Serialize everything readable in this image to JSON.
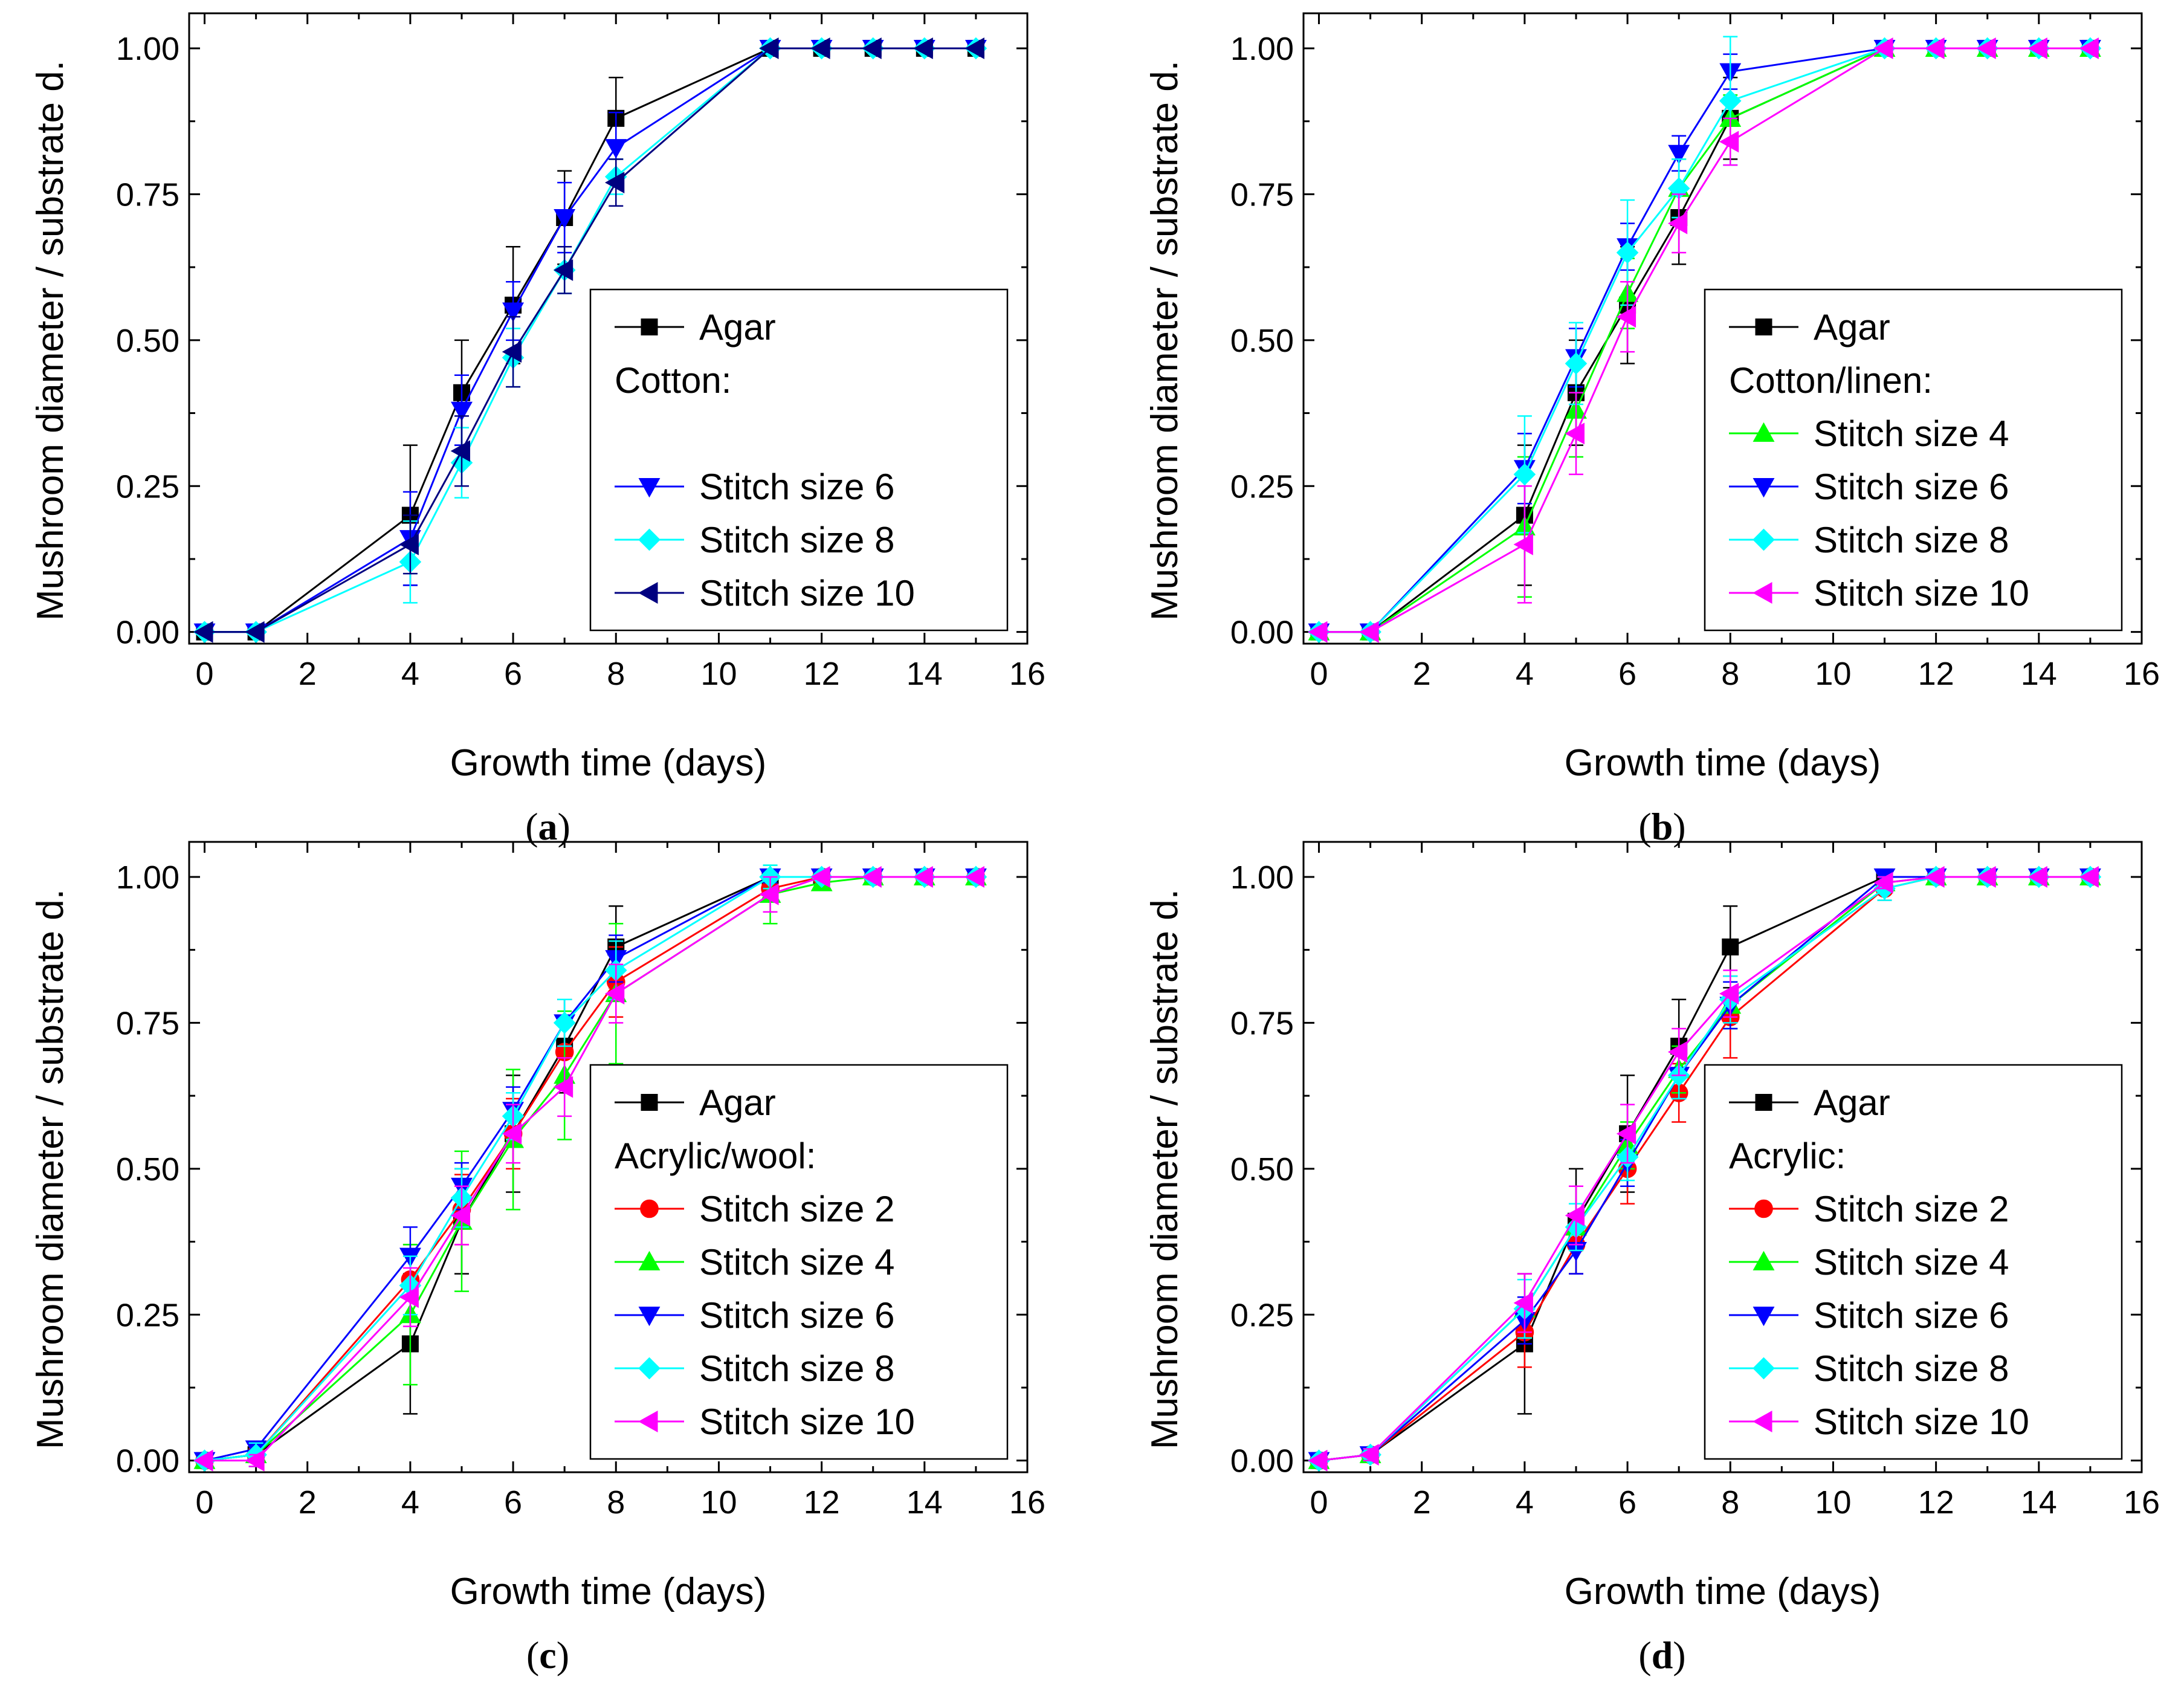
{
  "chart_data": [
    {
      "type": "line",
      "panel_label": "a",
      "xlabel": "Growth time (days)",
      "ylabel": "Mushroom diameter / substrate d.",
      "xlim": [
        -0.3,
        16
      ],
      "ylim": [
        -0.02,
        1.06
      ],
      "xticks": [
        0,
        2,
        4,
        6,
        8,
        10,
        12,
        14,
        16
      ],
      "yticks": [
        0.0,
        0.25,
        0.5,
        0.75,
        1.0
      ],
      "ytick_labels": [
        "0.00",
        "0.25",
        "0.50",
        "0.75",
        "1.00"
      ],
      "grid": false,
      "legend_position": "bottom-right",
      "legend_group_label": "Cotton:",
      "legend_gap": 1,
      "series": [
        {
          "name": "Agar",
          "color": "#000000",
          "marker": "square",
          "x": [
            0,
            1,
            4,
            5,
            6,
            7,
            8,
            11,
            12,
            13,
            14,
            15
          ],
          "y": [
            0.0,
            0.0,
            0.2,
            0.41,
            0.56,
            0.71,
            0.88,
            1.0,
            1.0,
            1.0,
            1.0,
            1.0
          ],
          "err": [
            0,
            0,
            0.12,
            0.09,
            0.1,
            0.08,
            0.07,
            0,
            0,
            0,
            0,
            0
          ]
        },
        {
          "name": "Stitch size 6",
          "color": "#0000ff",
          "marker": "triangle-down",
          "x": [
            0,
            1,
            4,
            5,
            6,
            7,
            8,
            11,
            12,
            13,
            14,
            15
          ],
          "y": [
            0.0,
            0.0,
            0.16,
            0.38,
            0.55,
            0.71,
            0.83,
            1.0,
            1.0,
            1.0,
            1.0,
            1.0
          ],
          "err": [
            0,
            0,
            0.08,
            0.06,
            0.05,
            0.06,
            0.06,
            0,
            0,
            0,
            0,
            0
          ]
        },
        {
          "name": "Stitch size 8",
          "color": "#00ffff",
          "marker": "diamond",
          "x": [
            0,
            1,
            4,
            5,
            6,
            7,
            8,
            11,
            12,
            13,
            14,
            15
          ],
          "y": [
            0.0,
            0.0,
            0.12,
            0.29,
            0.47,
            0.62,
            0.78,
            1.0,
            1.0,
            1.0,
            1.0,
            1.0
          ],
          "err": [
            0,
            0,
            0.07,
            0.06,
            0.05,
            0.04,
            0.03,
            0,
            0,
            0,
            0,
            0
          ]
        },
        {
          "name": "Stitch size 10",
          "color": "#000080",
          "marker": "triangle-left",
          "x": [
            0,
            1,
            4,
            5,
            6,
            7,
            8,
            11,
            12,
            13,
            14,
            15
          ],
          "y": [
            0.0,
            0.0,
            0.15,
            0.31,
            0.48,
            0.62,
            0.77,
            1.0,
            1.0,
            1.0,
            1.0,
            1.0
          ],
          "err": [
            0,
            0,
            0.05,
            0.06,
            0.06,
            0.04,
            0.04,
            0,
            0,
            0,
            0,
            0
          ]
        }
      ]
    },
    {
      "type": "line",
      "panel_label": "b",
      "xlabel": "Growth time (days)",
      "ylabel": "Mushroom diameter / substrate d.",
      "xlim": [
        -0.3,
        16
      ],
      "ylim": [
        -0.02,
        1.06
      ],
      "xticks": [
        0,
        2,
        4,
        6,
        8,
        10,
        12,
        14,
        16
      ],
      "yticks": [
        0.0,
        0.25,
        0.5,
        0.75,
        1.0
      ],
      "ytick_labels": [
        "0.00",
        "0.25",
        "0.50",
        "0.75",
        "1.00"
      ],
      "grid": false,
      "legend_position": "bottom-right",
      "legend_group_label": "Cotton/linen:",
      "legend_gap": 0,
      "series": [
        {
          "name": "Agar",
          "color": "#000000",
          "marker": "square",
          "x": [
            0,
            1,
            4,
            5,
            6,
            7,
            8,
            11,
            12,
            13,
            14,
            15
          ],
          "y": [
            0.0,
            0.0,
            0.2,
            0.41,
            0.56,
            0.71,
            0.88,
            1.0,
            1.0,
            1.0,
            1.0,
            1.0
          ],
          "err": [
            0,
            0,
            0.12,
            0.09,
            0.1,
            0.08,
            0.07,
            0,
            0,
            0,
            0,
            0
          ]
        },
        {
          "name": "Stitch size 4",
          "color": "#00ff00",
          "marker": "triangle-up",
          "x": [
            0,
            1,
            4,
            5,
            6,
            7,
            8,
            11,
            12,
            13,
            14,
            15
          ],
          "y": [
            0.0,
            0.0,
            0.18,
            0.38,
            0.58,
            0.76,
            0.88,
            1.0,
            1.0,
            1.0,
            1.0,
            1.0
          ],
          "err": [
            0,
            0,
            0.12,
            0.08,
            0.06,
            0.05,
            0.04,
            0,
            0,
            0,
            0,
            0
          ]
        },
        {
          "name": "Stitch size 6",
          "color": "#0000ff",
          "marker": "triangle-down",
          "x": [
            0,
            1,
            4,
            5,
            6,
            7,
            8,
            11,
            12,
            13,
            14,
            15
          ],
          "y": [
            0.0,
            0.0,
            0.28,
            0.47,
            0.66,
            0.82,
            0.96,
            1.0,
            1.0,
            1.0,
            1.0,
            1.0
          ],
          "err": [
            0,
            0,
            0.06,
            0.05,
            0.04,
            0.03,
            0.03,
            0,
            0,
            0,
            0,
            0
          ]
        },
        {
          "name": "Stitch size 8",
          "color": "#00ffff",
          "marker": "diamond",
          "x": [
            0,
            1,
            4,
            5,
            6,
            7,
            8,
            11,
            12,
            13,
            14,
            15
          ],
          "y": [
            0.0,
            0.0,
            0.27,
            0.46,
            0.65,
            0.76,
            0.91,
            1.0,
            1.0,
            1.0,
            1.0,
            1.0
          ],
          "err": [
            0,
            0,
            0.1,
            0.07,
            0.09,
            0.05,
            0.11,
            0,
            0,
            0,
            0,
            0
          ]
        },
        {
          "name": "Stitch size 10",
          "color": "#ff00ff",
          "marker": "triangle-left",
          "x": [
            0,
            1,
            4,
            5,
            6,
            7,
            8,
            11,
            12,
            13,
            14,
            15
          ],
          "y": [
            0.0,
            0.0,
            0.15,
            0.34,
            0.54,
            0.7,
            0.84,
            1.0,
            1.0,
            1.0,
            1.0,
            1.0
          ],
          "err": [
            0,
            0,
            0.1,
            0.07,
            0.06,
            0.05,
            0.04,
            0,
            0,
            0,
            0,
            0
          ]
        }
      ]
    },
    {
      "type": "line",
      "panel_label": "c",
      "xlabel": "Growth time (days)",
      "ylabel": "Mushroom diameter / substrate d.",
      "xlim": [
        -0.3,
        16
      ],
      "ylim": [
        -0.02,
        1.06
      ],
      "xticks": [
        0,
        2,
        4,
        6,
        8,
        10,
        12,
        14,
        16
      ],
      "yticks": [
        0.0,
        0.25,
        0.5,
        0.75,
        1.0
      ],
      "ytick_labels": [
        "0.00",
        "0.25",
        "0.50",
        "0.75",
        "1.00"
      ],
      "grid": false,
      "legend_position": "bottom-right",
      "legend_group_label": "Acrylic/wool:",
      "legend_gap": 0,
      "series": [
        {
          "name": "Agar",
          "color": "#000000",
          "marker": "square",
          "x": [
            0,
            1,
            4,
            5,
            6,
            7,
            8,
            11,
            12,
            13,
            14,
            15
          ],
          "y": [
            0.0,
            0.01,
            0.2,
            0.41,
            0.56,
            0.71,
            0.88,
            1.0,
            1.0,
            1.0,
            1.0,
            1.0
          ],
          "err": [
            0,
            0,
            0.12,
            0.09,
            0.1,
            0.08,
            0.07,
            0,
            0,
            0,
            0,
            0
          ]
        },
        {
          "name": "Stitch size 2",
          "color": "#ff0000",
          "marker": "circle",
          "x": [
            0,
            1,
            4,
            5,
            6,
            7,
            8,
            11,
            12,
            13,
            14,
            15
          ],
          "y": [
            0.0,
            0.01,
            0.31,
            0.43,
            0.56,
            0.7,
            0.82,
            0.98,
            1.0,
            1.0,
            1.0,
            1.0
          ],
          "err": [
            0,
            0.01,
            0.06,
            0.06,
            0.06,
            0.06,
            0.06,
            0.02,
            0,
            0,
            0,
            0
          ]
        },
        {
          "name": "Stitch size 4",
          "color": "#00ff00",
          "marker": "triangle-up",
          "x": [
            0,
            1,
            4,
            5,
            6,
            7,
            8,
            11,
            12,
            13,
            14,
            15
          ],
          "y": [
            0.0,
            0.01,
            0.25,
            0.41,
            0.55,
            0.66,
            0.8,
            0.97,
            0.99,
            1.0,
            1.0,
            1.0
          ],
          "err": [
            0,
            0.02,
            0.12,
            0.12,
            0.12,
            0.11,
            0.12,
            0.05,
            0.01,
            0,
            0,
            0
          ]
        },
        {
          "name": "Stitch size 6",
          "color": "#0000ff",
          "marker": "triangle-down",
          "x": [
            0,
            1,
            4,
            5,
            6,
            7,
            8,
            11,
            12,
            13,
            14,
            15
          ],
          "y": [
            0.0,
            0.02,
            0.35,
            0.47,
            0.6,
            0.75,
            0.86,
            1.0,
            1.0,
            1.0,
            1.0,
            1.0
          ],
          "err": [
            0,
            0.01,
            0.05,
            0.04,
            0.04,
            0.04,
            0.04,
            0.01,
            0,
            0,
            0,
            0
          ]
        },
        {
          "name": "Stitch size 8",
          "color": "#00ffff",
          "marker": "diamond",
          "x": [
            0,
            1,
            4,
            5,
            6,
            7,
            8,
            11,
            12,
            13,
            14,
            15
          ],
          "y": [
            0.0,
            0.01,
            0.3,
            0.45,
            0.59,
            0.75,
            0.84,
            1.0,
            1.0,
            1.0,
            1.0,
            1.0
          ],
          "err": [
            0,
            0.02,
            0.05,
            0.05,
            0.04,
            0.04,
            0.05,
            0.02,
            0,
            0,
            0,
            0
          ]
        },
        {
          "name": "Stitch size 10",
          "color": "#ff00ff",
          "marker": "triangle-left",
          "x": [
            0,
            1,
            4,
            5,
            6,
            7,
            8,
            11,
            12,
            13,
            14,
            15
          ],
          "y": [
            0.0,
            0.0,
            0.28,
            0.42,
            0.56,
            0.64,
            0.8,
            0.97,
            1.0,
            1.0,
            1.0,
            1.0
          ],
          "err": [
            0,
            0.01,
            0.05,
            0.05,
            0.05,
            0.05,
            0.05,
            0.03,
            0,
            0,
            0,
            0
          ]
        }
      ]
    },
    {
      "type": "line",
      "panel_label": "d",
      "xlabel": "Growth time (days)",
      "ylabel": "Mushroom diameter / substrate d.",
      "xlim": [
        -0.3,
        16
      ],
      "ylim": [
        -0.02,
        1.06
      ],
      "xticks": [
        0,
        2,
        4,
        6,
        8,
        10,
        12,
        14,
        16
      ],
      "yticks": [
        0.0,
        0.25,
        0.5,
        0.75,
        1.0
      ],
      "ytick_labels": [
        "0.00",
        "0.25",
        "0.50",
        "0.75",
        "1.00"
      ],
      "grid": false,
      "legend_position": "bottom-right",
      "legend_group_label": "Acrylic:",
      "legend_gap": 0,
      "series": [
        {
          "name": "Agar",
          "color": "#000000",
          "marker": "square",
          "x": [
            0,
            1,
            4,
            5,
            6,
            7,
            8,
            11,
            12,
            13,
            14,
            15
          ],
          "y": [
            0.0,
            0.01,
            0.2,
            0.41,
            0.56,
            0.71,
            0.88,
            1.0,
            1.0,
            1.0,
            1.0,
            1.0
          ],
          "err": [
            0,
            0,
            0.12,
            0.09,
            0.1,
            0.08,
            0.07,
            0,
            0,
            0,
            0,
            0
          ]
        },
        {
          "name": "Stitch size 2",
          "color": "#ff0000",
          "marker": "circle",
          "x": [
            0,
            1,
            4,
            5,
            6,
            7,
            8,
            11,
            12,
            13,
            14,
            15
          ],
          "y": [
            0.0,
            0.01,
            0.22,
            0.37,
            0.5,
            0.63,
            0.76,
            0.98,
            1.0,
            1.0,
            1.0,
            1.0
          ],
          "err": [
            0,
            0.01,
            0.06,
            0.05,
            0.06,
            0.05,
            0.07,
            0.02,
            0,
            0,
            0,
            0
          ]
        },
        {
          "name": "Stitch size 4",
          "color": "#00ff00",
          "marker": "triangle-up",
          "x": [
            0,
            1,
            4,
            5,
            6,
            7,
            8,
            11,
            12,
            13,
            14,
            15
          ],
          "y": [
            0.0,
            0.01,
            0.26,
            0.4,
            0.54,
            0.67,
            0.78,
            0.99,
            1.0,
            1.0,
            1.0,
            1.0
          ],
          "err": [
            0,
            0.01,
            0.05,
            0.04,
            0.04,
            0.04,
            0.04,
            0.01,
            0,
            0,
            0,
            0
          ]
        },
        {
          "name": "Stitch size 6",
          "color": "#0000ff",
          "marker": "triangle-down",
          "x": [
            0,
            1,
            4,
            5,
            6,
            7,
            8,
            11,
            12,
            13,
            14,
            15
          ],
          "y": [
            0.0,
            0.01,
            0.24,
            0.36,
            0.51,
            0.66,
            0.78,
            1.0,
            1.0,
            1.0,
            1.0,
            1.0
          ],
          "err": [
            0,
            0.01,
            0.04,
            0.04,
            0.04,
            0.04,
            0.04,
            0.01,
            0,
            0,
            0,
            0
          ]
        },
        {
          "name": "Stitch size 8",
          "color": "#00ffff",
          "marker": "diamond",
          "x": [
            0,
            1,
            4,
            5,
            6,
            7,
            8,
            11,
            12,
            13,
            14,
            15
          ],
          "y": [
            0.0,
            0.01,
            0.26,
            0.4,
            0.52,
            0.66,
            0.79,
            0.98,
            1.0,
            1.0,
            1.0,
            1.0
          ],
          "err": [
            0,
            0.01,
            0.05,
            0.04,
            0.04,
            0.04,
            0.04,
            0.02,
            0,
            0,
            0,
            0
          ]
        },
        {
          "name": "Stitch size 10",
          "color": "#ff00ff",
          "marker": "triangle-left",
          "x": [
            0,
            1,
            4,
            5,
            6,
            7,
            8,
            11,
            12,
            13,
            14,
            15
          ],
          "y": [
            0.0,
            0.01,
            0.27,
            0.42,
            0.56,
            0.7,
            0.8,
            0.99,
            1.0,
            1.0,
            1.0,
            1.0
          ],
          "err": [
            0,
            0.01,
            0.05,
            0.05,
            0.05,
            0.04,
            0.04,
            0.01,
            0,
            0,
            0,
            0
          ]
        }
      ]
    }
  ]
}
